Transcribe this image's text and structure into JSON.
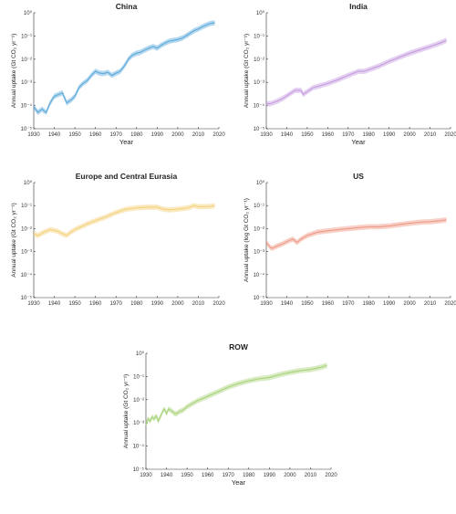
{
  "chart_data": [
    {
      "type": "line",
      "title": "China",
      "xlabel": "Year",
      "ylabel": "Annual uptake (Gt CO₂ yr⁻¹)",
      "xlim": [
        1930,
        2020
      ],
      "ylim": [
        1e-05,
        1
      ],
      "yscale": "log",
      "xticks": [
        "1930",
        "1940",
        "1950",
        "1960",
        "1970",
        "1980",
        "1990",
        "2000",
        "2010",
        "2020"
      ],
      "yticks": [
        "10⁻⁵",
        "10⁻⁴",
        "10⁻³",
        "10⁻²",
        "10⁻¹",
        "10⁰"
      ],
      "color": "#5aa9dc",
      "band_factor": 1.3,
      "series": [
        {
          "x": [
            1930,
            1932,
            1934,
            1936,
            1938,
            1940,
            1942,
            1944,
            1946,
            1948,
            1950,
            1952,
            1954,
            1956,
            1958,
            1960,
            1962,
            1964,
            1966,
            1968,
            1970,
            1972,
            1974,
            1976,
            1978,
            1980,
            1982,
            1984,
            1986,
            1988,
            1990,
            1992,
            1994,
            1996,
            1998,
            2000,
            2002,
            2004,
            2006,
            2008,
            2010,
            2012,
            2014,
            2016,
            2018
          ],
          "values": [
            9e-05,
            5e-05,
            7e-05,
            5e-05,
            0.00013,
            0.00025,
            0.0003,
            0.00035,
            0.00013,
            0.00017,
            0.00025,
            0.0006,
            0.0009,
            0.0012,
            0.002,
            0.003,
            0.0025,
            0.0024,
            0.0027,
            0.002,
            0.0025,
            0.003,
            0.005,
            0.01,
            0.015,
            0.018,
            0.02,
            0.025,
            0.03,
            0.035,
            0.03,
            0.04,
            0.05,
            0.06,
            0.065,
            0.07,
            0.08,
            0.1,
            0.13,
            0.17,
            0.2,
            0.25,
            0.3,
            0.35,
            0.37
          ]
        }
      ]
    },
    {
      "type": "line",
      "title": "India",
      "xlabel": "Year",
      "ylabel": "Annual uptake (Gt CO₂ yr⁻¹)",
      "xlim": [
        1930,
        2020
      ],
      "ylim": [
        1e-05,
        1
      ],
      "yscale": "log",
      "xticks": [
        "1930",
        "1940",
        "1950",
        "1960",
        "1970",
        "1980",
        "1990",
        "2000",
        "2010",
        "2020"
      ],
      "yticks": [
        "10⁻⁵",
        "10⁻⁴",
        "10⁻³",
        "10⁻²",
        "10⁻¹",
        "10⁰"
      ],
      "color": "#c59be0",
      "band_factor": 1.3,
      "series": [
        {
          "x": [
            1930,
            1932,
            1935,
            1938,
            1941,
            1944,
            1947,
            1948,
            1950,
            1953,
            1956,
            1960,
            1965,
            1970,
            1975,
            1978,
            1980,
            1985,
            1990,
            1995,
            2000,
            2005,
            2010,
            2015,
            2018
          ],
          "values": [
            0.00012,
            0.00012,
            0.00015,
            0.0002,
            0.0003,
            0.00045,
            0.00045,
            0.0003,
            0.0004,
            0.0006,
            0.0007,
            0.0009,
            0.0013,
            0.002,
            0.003,
            0.003,
            0.0035,
            0.005,
            0.008,
            0.012,
            0.018,
            0.025,
            0.035,
            0.05,
            0.065
          ]
        }
      ]
    },
    {
      "type": "line",
      "title": "Europe and Central Eurasia",
      "xlabel": "",
      "ylabel": "Annual uptake (Gt CO₂ yr⁻¹)",
      "xlim": [
        1930,
        2020
      ],
      "ylim": [
        1e-05,
        1
      ],
      "yscale": "log",
      "xticks": [
        "1930",
        "1940",
        "1950",
        "1960",
        "1970",
        "1980",
        "1990",
        "2000",
        "2010",
        "2020"
      ],
      "yticks": [
        "10⁻⁵",
        "10⁻⁴",
        "10⁻³",
        "10⁻²",
        "10⁻¹",
        "10⁰"
      ],
      "color": "#f4d17a",
      "band_factor": 1.3,
      "series": [
        {
          "x": [
            1930,
            1932,
            1935,
            1938,
            1941,
            1944,
            1946,
            1948,
            1950,
            1953,
            1956,
            1960,
            1965,
            1970,
            1975,
            1980,
            1985,
            1990,
            1993,
            1996,
            2000,
            2005,
            2008,
            2010,
            2015,
            2018
          ],
          "values": [
            0.006,
            0.005,
            0.007,
            0.009,
            0.008,
            0.006,
            0.005,
            0.007,
            0.009,
            0.012,
            0.016,
            0.022,
            0.032,
            0.05,
            0.07,
            0.08,
            0.085,
            0.085,
            0.07,
            0.065,
            0.07,
            0.08,
            0.1,
            0.09,
            0.09,
            0.1
          ]
        }
      ]
    },
    {
      "type": "line",
      "title": "US",
      "xlabel": "",
      "ylabel": "Annual uptake (log Gt CO₂ yr⁻¹)",
      "xlim": [
        1930,
        2020
      ],
      "ylim": [
        1e-05,
        1
      ],
      "yscale": "log",
      "xticks": [
        "1930",
        "1940",
        "1950",
        "1960",
        "1970",
        "1980",
        "1990",
        "2000",
        "2010",
        "2020"
      ],
      "yticks": [
        "10⁻⁵",
        "10⁻⁴",
        "10⁻³",
        "10⁻²",
        "10⁻¹",
        "10⁰"
      ],
      "color": "#ee9a86",
      "band_factor": 1.3,
      "series": [
        {
          "x": [
            1930,
            1932,
            1933,
            1935,
            1938,
            1941,
            1943,
            1945,
            1947,
            1950,
            1955,
            1960,
            1965,
            1970,
            1975,
            1980,
            1985,
            1990,
            1995,
            2000,
            2005,
            2010,
            2015,
            2018
          ],
          "values": [
            0.0025,
            0.0015,
            0.0014,
            0.0017,
            0.0022,
            0.003,
            0.0035,
            0.0025,
            0.0035,
            0.005,
            0.007,
            0.008,
            0.009,
            0.01,
            0.011,
            0.012,
            0.012,
            0.013,
            0.015,
            0.017,
            0.019,
            0.02,
            0.022,
            0.024
          ]
        }
      ]
    },
    {
      "type": "line",
      "title": "ROW",
      "xlabel": "Year",
      "ylabel": "Annual uptake (Gt CO₂ yr⁻¹)",
      "xlim": [
        1930,
        2020
      ],
      "ylim": [
        1e-05,
        1
      ],
      "yscale": "log",
      "xticks": [
        "1930",
        "1940",
        "1950",
        "1960",
        "1970",
        "1980",
        "1990",
        "2000",
        "2010",
        "2020"
      ],
      "yticks": [
        "10⁻⁵",
        "10⁻⁴",
        "10⁻³",
        "10⁻²",
        "10⁻¹",
        "10⁰"
      ],
      "color": "#a8d37b",
      "band_factor": 1.3,
      "series": [
        {
          "x": [
            1930,
            1931,
            1932,
            1933,
            1934,
            1935,
            1936,
            1937,
            1938,
            1939,
            1940,
            1941,
            1942,
            1943,
            1944,
            1945,
            1946,
            1948,
            1950,
            1955,
            1960,
            1965,
            1970,
            1975,
            1980,
            1985,
            1990,
            1995,
            2000,
            2005,
            2010,
            2015,
            2018
          ],
          "values": [
            0.0008,
            0.0015,
            0.0012,
            0.0018,
            0.0015,
            0.002,
            0.0012,
            0.0018,
            0.003,
            0.004,
            0.0025,
            0.004,
            0.0035,
            0.003,
            0.0025,
            0.0025,
            0.003,
            0.0035,
            0.005,
            0.009,
            0.014,
            0.022,
            0.035,
            0.05,
            0.065,
            0.08,
            0.09,
            0.12,
            0.15,
            0.18,
            0.2,
            0.25,
            0.3
          ]
        }
      ]
    }
  ]
}
